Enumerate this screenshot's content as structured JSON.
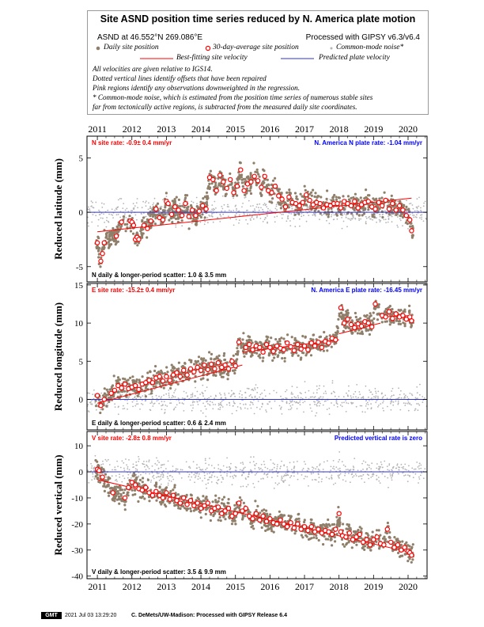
{
  "header": {
    "title": "Site ASND position time series reduced by N. America plate motion",
    "site_label": "ASND at 46.552°N 269.086°E",
    "processing": "Processed with GIPSY v6.3/v6.4",
    "legend": {
      "daily": "Daily site position",
      "avg30": "30-day-average site position",
      "cm_noise": "Common-mode noise*",
      "best_fit": "Best-fitting site velocity",
      "predicted": "Predicted plate velocity"
    },
    "notes": [
      "All velocities are given relative to IGS14.",
      "Dotted vertical lines identify offsets that have been repaired",
      "Pink regions identify any observations downweighted in the regression.",
      "* Common-mode noise, which is estimated from the position time series of numerous stable sites",
      "far from tectonically active regions, is subtracted from the measured daily site coordinates."
    ]
  },
  "colors": {
    "daily": "#8f7f6a",
    "cm_noise": "#b4b4b4",
    "avg_outline": "#ff0000",
    "best_fit": "#ff0000",
    "predicted": "#3030d0",
    "red_text": "#ff0000",
    "blue_text": "#0000ff"
  },
  "chart_data": [
    {
      "type": "scatter",
      "name": "north",
      "ylabel": "Reduced latitude (mm)",
      "xlim": [
        2010.7,
        2020.55
      ],
      "ylim": [
        -6.4,
        7.0
      ],
      "yticks": [
        -5,
        0,
        5
      ],
      "xticks": [
        2011,
        2012,
        2013,
        2014,
        2015,
        2016,
        2017,
        2018,
        2019,
        2020
      ],
      "site_rate_text": "N site rate:  -0.9± 0.4 mm/yr",
      "plate_rate_text": "N. America N plate rate: -1.04 mm/yr",
      "scatter_text": "N daily & longer-period scatter:   1.0 &   3.5 mm",
      "best_fit": {
        "x": [
          2011.0,
          2020.1
        ],
        "y": [
          -1.8,
          1.3
        ]
      },
      "predicted": {
        "x": [
          2010.7,
          2020.55
        ],
        "y": [
          0.0,
          0.0
        ]
      },
      "averages": {
        "x": [
          2011.0,
          2011.1,
          2011.15,
          2011.2,
          2011.55,
          2011.7,
          2011.95,
          2012.0,
          2012.05,
          2012.1,
          2012.15,
          2012.2,
          2012.35,
          2012.45,
          2012.55,
          2012.7,
          2012.8,
          2012.9,
          2013.0,
          2013.05,
          2013.15,
          2013.25,
          2013.35,
          2013.45,
          2013.55,
          2013.65,
          2013.75,
          2013.85,
          2013.95,
          2014.05,
          2014.15,
          2014.25,
          2014.35,
          2014.45,
          2014.55,
          2014.65,
          2014.75,
          2014.85,
          2014.95,
          2015.05,
          2015.15,
          2015.25,
          2015.35,
          2015.45,
          2015.55,
          2015.65,
          2015.75,
          2015.85,
          2015.95,
          2016.05,
          2016.15,
          2016.25,
          2016.35,
          2016.45,
          2016.55,
          2016.65,
          2016.75,
          2016.85,
          2016.95,
          2017.05,
          2017.15,
          2017.25,
          2017.35,
          2017.45,
          2017.55,
          2017.65,
          2017.75,
          2017.85,
          2017.95,
          2018.05,
          2018.15,
          2018.25,
          2018.35,
          2018.45,
          2018.55,
          2018.65,
          2018.75,
          2018.85,
          2018.95,
          2019.05,
          2019.15,
          2019.25,
          2019.35,
          2019.45,
          2019.55,
          2019.65,
          2019.75,
          2019.85,
          2019.95,
          2020.05,
          2020.1
        ],
        "y": [
          -2.8,
          -4.5,
          -3.8,
          -2.8,
          -2.2,
          -0.9,
          -0.8,
          -0.9,
          -1.2,
          -2.5,
          -2.3,
          -2.5,
          -1.2,
          -1.5,
          -0.8,
          0.3,
          -0.5,
          -0.7,
          1.0,
          0.8,
          -0.2,
          0.5,
          0.2,
          -0.3,
          0.8,
          -0.4,
          0.2,
          -0.3,
          0.1,
          0.6,
          0.3,
          3.2,
          3.0,
          2.0,
          3.4,
          2.8,
          2.2,
          3.0,
          1.8,
          2.4,
          3.9,
          2.0,
          2.6,
          2.8,
          3.3,
          2.9,
          2.3,
          3.3,
          2.0,
          1.8,
          2.4,
          1.5,
          1.2,
          0.5,
          1.4,
          0.9,
          0.8,
          0.6,
          0.9,
          1.6,
          1.1,
          0.7,
          0.9,
          0.8,
          0.4,
          0.7,
          0.6,
          0.8,
          0.8,
          0.4,
          1.0,
          0.8,
          0.6,
          1.0,
          0.4,
          0.7,
          0.9,
          1.0,
          0.5,
          0.3,
          0.9,
          0.6,
          1.1,
          0.3,
          0.8,
          0.2,
          0.6,
          0.2,
          -0.3,
          -0.7,
          -1.7
        ]
      }
    },
    {
      "type": "scatter",
      "name": "east",
      "ylabel": "Reduced longitude (mm)",
      "xlim": [
        2010.7,
        2020.55
      ],
      "ylim": [
        -4.0,
        15.2
      ],
      "yticks": [
        0,
        5,
        10,
        15
      ],
      "xticks": [
        2011,
        2012,
        2013,
        2014,
        2015,
        2016,
        2017,
        2018,
        2019,
        2020
      ],
      "site_rate_text": "E site rate: -15.2± 0.4 mm/yr",
      "plate_rate_text": "N. America E plate rate: -16.45 mm/yr",
      "scatter_text": "E daily & longer-period scatter:   0.6 &   2.4 mm",
      "best_fit": {
        "x": [
          2011.0,
          2015.2,
          2015.2,
          2018.0,
          2018.0,
          2019.2,
          2019.2,
          2020.1
        ],
        "y": [
          -0.5,
          4.5,
          6.2,
          7.8,
          8.6,
          10.0,
          10.8,
          11.0
        ]
      },
      "predicted": {
        "x": [
          2010.7,
          2020.55
        ],
        "y": [
          0.0,
          0.0
        ]
      },
      "averages": {
        "x": [
          2011.0,
          2011.1,
          2011.2,
          2011.4,
          2011.5,
          2011.6,
          2011.7,
          2011.8,
          2011.9,
          2012.0,
          2012.1,
          2012.2,
          2012.3,
          2012.4,
          2012.5,
          2012.6,
          2012.7,
          2012.8,
          2012.9,
          2013.0,
          2013.1,
          2013.2,
          2013.3,
          2013.4,
          2013.5,
          2013.6,
          2013.7,
          2013.8,
          2013.9,
          2014.0,
          2014.1,
          2014.2,
          2014.3,
          2014.4,
          2014.5,
          2014.6,
          2014.7,
          2014.8,
          2014.9,
          2015.0,
          2015.1,
          2015.3,
          2015.4,
          2015.5,
          2015.6,
          2015.7,
          2015.8,
          2015.9,
          2016.0,
          2016.1,
          2016.2,
          2016.3,
          2016.4,
          2016.5,
          2016.6,
          2016.7,
          2016.8,
          2016.9,
          2017.0,
          2017.1,
          2017.2,
          2017.3,
          2017.4,
          2017.5,
          2017.6,
          2017.7,
          2017.8,
          2017.9,
          2018.05,
          2018.15,
          2018.25,
          2018.35,
          2018.45,
          2018.55,
          2018.65,
          2018.75,
          2018.85,
          2018.95,
          2019.05,
          2019.25,
          2019.35,
          2019.45,
          2019.55,
          2019.65,
          2019.75,
          2019.85,
          2019.95,
          2020.05,
          2020.1
        ],
        "y": [
          0.5,
          -0.8,
          0.0,
          0.8,
          1.2,
          1.8,
          1.5,
          2.0,
          1.4,
          1.6,
          1.8,
          1.3,
          2.0,
          2.2,
          2.5,
          2.2,
          2.8,
          3.0,
          2.4,
          3.0,
          2.5,
          3.2,
          3.5,
          3.0,
          3.8,
          3.2,
          4.0,
          3.6,
          4.2,
          3.8,
          4.5,
          3.9,
          4.6,
          4.0,
          4.8,
          4.2,
          4.5,
          4.0,
          5.0,
          4.4,
          7.5,
          6.8,
          7.2,
          6.5,
          7.0,
          6.8,
          6.2,
          7.2,
          6.8,
          6.3,
          7.0,
          6.7,
          6.5,
          7.4,
          6.9,
          6.4,
          7.2,
          6.6,
          7.0,
          6.5,
          7.4,
          7.0,
          7.5,
          6.8,
          7.6,
          7.4,
          8.0,
          7.8,
          12.0,
          10.0,
          10.5,
          9.8,
          9.4,
          9.9,
          9.6,
          10.2,
          10.0,
          9.5,
          12.5,
          11.0,
          10.8,
          11.5,
          10.6,
          11.2,
          10.8,
          11.0,
          10.5,
          10.8,
          10.3
        ]
      }
    },
    {
      "type": "scatter",
      "name": "vertical",
      "ylabel": "Reduced vertical (mm)",
      "xlim": [
        2010.7,
        2020.55
      ],
      "ylim": [
        -41.0,
        15.5
      ],
      "yticks": [
        -40,
        -30,
        -20,
        -10,
        0,
        10
      ],
      "xticks": [
        2011,
        2012,
        2013,
        2014,
        2015,
        2016,
        2017,
        2018,
        2019,
        2020
      ],
      "site_rate_text": "V site rate:  -2.8± 0.8 mm/yr",
      "plate_rate_text": "Predicted vertical rate is zero",
      "scatter_text": "V daily & longer-period scatter:   3.5 &   9.9 mm",
      "best_fit": {
        "x": [
          2011.0,
          2020.1
        ],
        "y": [
          -3.0,
          -31.0
        ]
      },
      "predicted": {
        "x": [
          2010.7,
          2020.55
        ],
        "y": [
          0.0,
          0.0
        ]
      },
      "averages": {
        "x": [
          2011.0,
          2011.05,
          2011.15,
          2011.45,
          2011.8,
          2011.9,
          2012.0,
          2012.1,
          2012.2,
          2012.3,
          2012.4,
          2012.5,
          2012.6,
          2012.7,
          2012.8,
          2012.9,
          2013.0,
          2013.1,
          2013.2,
          2013.3,
          2013.4,
          2013.5,
          2013.6,
          2013.7,
          2013.8,
          2013.9,
          2014.0,
          2014.1,
          2014.2,
          2014.3,
          2014.4,
          2014.5,
          2014.6,
          2014.7,
          2014.8,
          2014.9,
          2015.0,
          2015.1,
          2015.2,
          2015.3,
          2015.4,
          2015.5,
          2015.6,
          2015.7,
          2015.8,
          2015.9,
          2016.0,
          2016.1,
          2016.2,
          2016.3,
          2016.4,
          2016.5,
          2016.6,
          2016.7,
          2016.8,
          2016.9,
          2017.0,
          2017.1,
          2017.2,
          2017.3,
          2017.4,
          2017.5,
          2017.6,
          2017.7,
          2017.8,
          2017.9,
          2018.0,
          2018.05,
          2018.1,
          2018.2,
          2018.3,
          2018.4,
          2018.5,
          2018.6,
          2018.7,
          2018.8,
          2018.9,
          2019.0,
          2019.1,
          2019.2,
          2019.3,
          2019.4,
          2019.5,
          2019.6,
          2019.7,
          2019.8,
          2019.9,
          2020.0,
          2020.05,
          2020.1
        ],
        "y": [
          1.0,
          0.5,
          -2.0,
          -8.0,
          -10.0,
          -6.0,
          -4.0,
          -5.0,
          -6.5,
          -7.0,
          -6.0,
          -8.0,
          -9.0,
          -7.5,
          -9.0,
          -10.0,
          -8.0,
          -10.5,
          -9.0,
          -11.0,
          -12.0,
          -10.0,
          -12.5,
          -11.0,
          -13.0,
          -12.0,
          -14.0,
          -13.0,
          -12.0,
          -15.0,
          -14.0,
          -13.5,
          -16.0,
          -15.0,
          -14.0,
          -17.0,
          -16.0,
          -12.0,
          -15.0,
          -14.0,
          -17.0,
          -18.0,
          -16.0,
          -18.5,
          -17.0,
          -19.0,
          -18.0,
          -19.5,
          -20.0,
          -18.5,
          -20.0,
          -21.0,
          -19.5,
          -21.5,
          -20.0,
          -22.0,
          -21.0,
          -22.5,
          -21.0,
          -23.0,
          -22.0,
          -23.5,
          -22.5,
          -23.0,
          -24.0,
          -22.0,
          -16.0,
          -23.0,
          -24.5,
          -25.0,
          -23.5,
          -26.0,
          -25.0,
          -24.0,
          -27.0,
          -26.0,
          -28.0,
          -26.0,
          -25.0,
          -27.5,
          -28.0,
          -22.0,
          -27.0,
          -29.0,
          -28.0,
          -30.0,
          -29.0,
          -30.5,
          -31.0,
          -32.0
        ]
      }
    }
  ],
  "axis_labels": {
    "ylabel_north": "Reduced latitude (mm)",
    "ylabel_east": "Reduced longitude (mm)",
    "ylabel_vert": "Reduced vertical (mm)"
  },
  "footer": {
    "logo": "GMT",
    "timestamp": "2021 Jul 03 13:29:20",
    "credit": "C. DeMets/UW-Madison: Processed with GIPSY Release 6.4"
  }
}
